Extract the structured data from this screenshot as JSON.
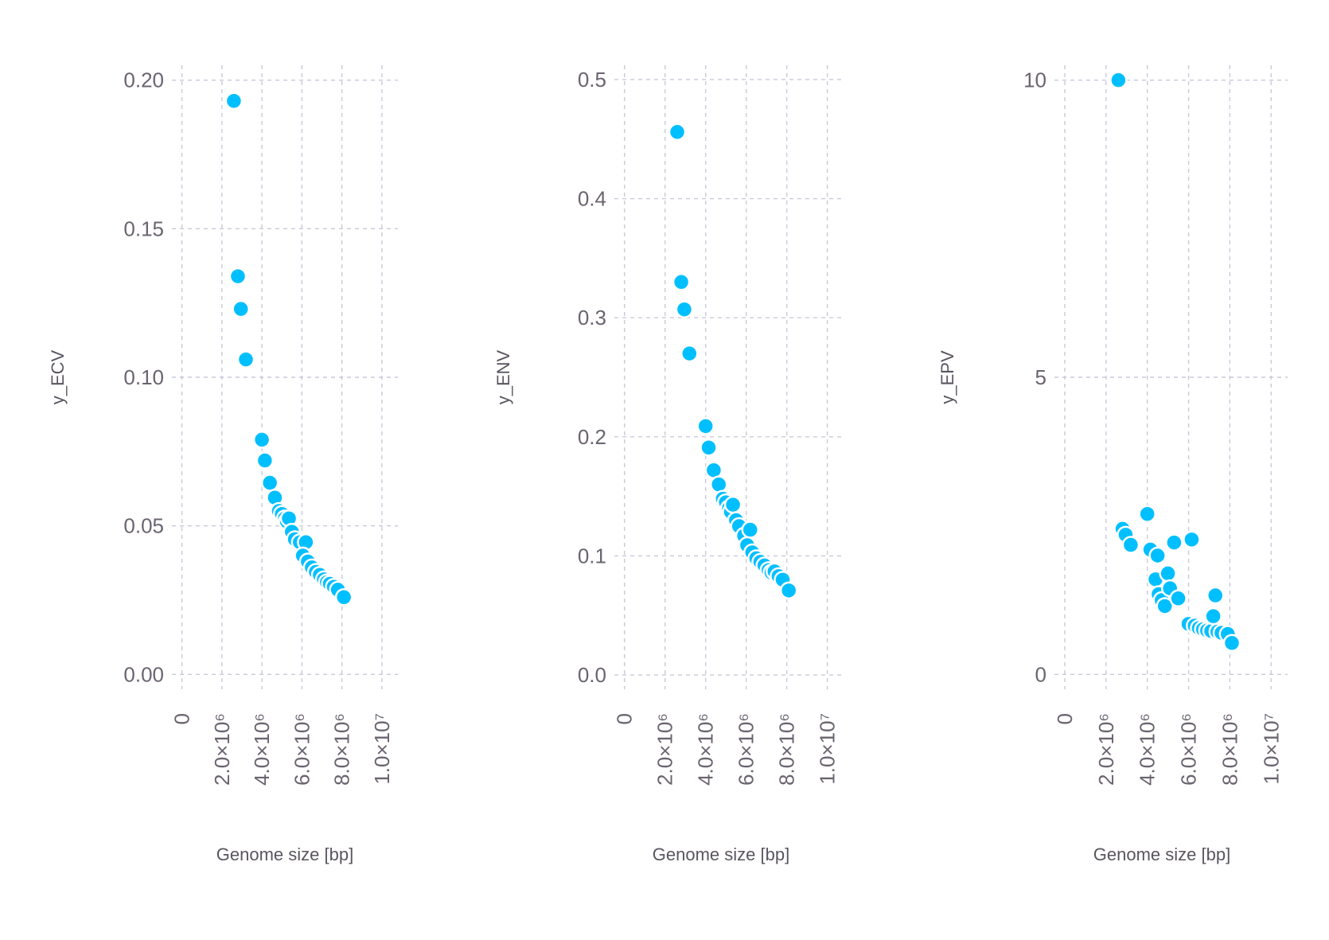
{
  "chart_data": [
    {
      "type": "scatter",
      "xlabel": "Genome size [bp]",
      "ylabel": "y_ECV",
      "xlim": [
        -500000,
        10800000
      ],
      "ylim": [
        -0.005,
        0.205
      ],
      "xticks": [
        0,
        2000000,
        4000000,
        6000000,
        8000000,
        10000000
      ],
      "xtick_labels": [
        "0",
        "2.0×10⁶",
        "4.0×10⁶",
        "6.0×10⁶",
        "8.0×10⁶",
        "1.0×10⁷"
      ],
      "yticks": [
        0,
        0.05,
        0.1,
        0.15,
        0.2
      ],
      "ytick_labels": [
        "0.00",
        "0.05",
        "0.10",
        "0.15",
        "0.20"
      ],
      "color": "#00bfff",
      "points": [
        {
          "x": 2600000,
          "y": 0.193
        },
        {
          "x": 2800000,
          "y": 0.134
        },
        {
          "x": 2950000,
          "y": 0.123
        },
        {
          "x": 3200000,
          "y": 0.106
        },
        {
          "x": 4000000,
          "y": 0.079
        },
        {
          "x": 4150000,
          "y": 0.072
        },
        {
          "x": 4400000,
          "y": 0.0645
        },
        {
          "x": 4650000,
          "y": 0.0595
        },
        {
          "x": 4850000,
          "y": 0.055
        },
        {
          "x": 5000000,
          "y": 0.054
        },
        {
          "x": 5150000,
          "y": 0.0525
        },
        {
          "x": 5250000,
          "y": 0.0515
        },
        {
          "x": 5350000,
          "y": 0.0525
        },
        {
          "x": 5500000,
          "y": 0.048
        },
        {
          "x": 5650000,
          "y": 0.0455
        },
        {
          "x": 5900000,
          "y": 0.0445
        },
        {
          "x": 6200000,
          "y": 0.0445
        },
        {
          "x": 6050000,
          "y": 0.04
        },
        {
          "x": 6300000,
          "y": 0.038
        },
        {
          "x": 6500000,
          "y": 0.036
        },
        {
          "x": 6700000,
          "y": 0.0345
        },
        {
          "x": 6900000,
          "y": 0.0335
        },
        {
          "x": 7100000,
          "y": 0.032
        },
        {
          "x": 7250000,
          "y": 0.031
        },
        {
          "x": 7400000,
          "y": 0.0305
        },
        {
          "x": 7600000,
          "y": 0.0295
        },
        {
          "x": 7800000,
          "y": 0.0285
        },
        {
          "x": 8100000,
          "y": 0.026
        }
      ]
    },
    {
      "type": "scatter",
      "xlabel": "Genome size [bp]",
      "ylabel": "y_ENV",
      "xlim": [
        -500000,
        10800000
      ],
      "ylim": [
        -0.012,
        0.512
      ],
      "xticks": [
        0,
        2000000,
        4000000,
        6000000,
        8000000,
        10000000
      ],
      "xtick_labels": [
        "0",
        "2.0×10⁶",
        "4.0×10⁶",
        "6.0×10⁶",
        "8.0×10⁶",
        "1.0×10⁷"
      ],
      "yticks": [
        0,
        0.1,
        0.2,
        0.3,
        0.4,
        0.5
      ],
      "ytick_labels": [
        "0.0",
        "0.1",
        "0.2",
        "0.3",
        "0.4",
        "0.5"
      ],
      "color": "#00bfff",
      "points": [
        {
          "x": 2600000,
          "y": 0.456
        },
        {
          "x": 2800000,
          "y": 0.33
        },
        {
          "x": 2950000,
          "y": 0.307
        },
        {
          "x": 3200000,
          "y": 0.27
        },
        {
          "x": 4000000,
          "y": 0.209
        },
        {
          "x": 4150000,
          "y": 0.191
        },
        {
          "x": 4400000,
          "y": 0.172
        },
        {
          "x": 4650000,
          "y": 0.16
        },
        {
          "x": 4850000,
          "y": 0.148
        },
        {
          "x": 5000000,
          "y": 0.145
        },
        {
          "x": 5150000,
          "y": 0.14
        },
        {
          "x": 5250000,
          "y": 0.137
        },
        {
          "x": 5350000,
          "y": 0.143
        },
        {
          "x": 5500000,
          "y": 0.13
        },
        {
          "x": 5650000,
          "y": 0.125
        },
        {
          "x": 5900000,
          "y": 0.117
        },
        {
          "x": 6200000,
          "y": 0.122
        },
        {
          "x": 6050000,
          "y": 0.109
        },
        {
          "x": 6300000,
          "y": 0.103
        },
        {
          "x": 6500000,
          "y": 0.098
        },
        {
          "x": 6700000,
          "y": 0.095
        },
        {
          "x": 6900000,
          "y": 0.092
        },
        {
          "x": 7100000,
          "y": 0.088
        },
        {
          "x": 7250000,
          "y": 0.086
        },
        {
          "x": 7400000,
          "y": 0.087
        },
        {
          "x": 7600000,
          "y": 0.083
        },
        {
          "x": 7800000,
          "y": 0.08
        },
        {
          "x": 8100000,
          "y": 0.071
        }
      ]
    },
    {
      "type": "scatter",
      "xlabel": "Genome size [bp]",
      "ylabel": "y_EPV",
      "xlim": [
        -500000,
        10800000
      ],
      "ylim": [
        -0.25,
        10.25
      ],
      "xticks": [
        0,
        2000000,
        4000000,
        6000000,
        8000000,
        10000000
      ],
      "xtick_labels": [
        "0",
        "2.0×10⁶",
        "4.0×10⁶",
        "6.0×10⁶",
        "8.0×10⁶",
        "1.0×10⁷"
      ],
      "yticks": [
        0,
        5,
        10
      ],
      "ytick_labels": [
        "0",
        "5",
        "10"
      ],
      "color": "#00bfff",
      "points": [
        {
          "x": 2600000,
          "y": 10.0
        },
        {
          "x": 2800000,
          "y": 2.45
        },
        {
          "x": 2950000,
          "y": 2.35
        },
        {
          "x": 3200000,
          "y": 2.18
        },
        {
          "x": 4000000,
          "y": 2.7
        },
        {
          "x": 4150000,
          "y": 2.1
        },
        {
          "x": 4400000,
          "y": 1.6
        },
        {
          "x": 4500000,
          "y": 2.0
        },
        {
          "x": 4550000,
          "y": 1.35
        },
        {
          "x": 4700000,
          "y": 1.25
        },
        {
          "x": 4850000,
          "y": 1.15
        },
        {
          "x": 5000000,
          "y": 1.7
        },
        {
          "x": 5100000,
          "y": 1.45
        },
        {
          "x": 5300000,
          "y": 2.22
        },
        {
          "x": 5500000,
          "y": 1.28
        },
        {
          "x": 6150000,
          "y": 2.27
        },
        {
          "x": 6000000,
          "y": 0.85
        },
        {
          "x": 6300000,
          "y": 0.82
        },
        {
          "x": 6500000,
          "y": 0.78
        },
        {
          "x": 6700000,
          "y": 0.76
        },
        {
          "x": 6900000,
          "y": 0.74
        },
        {
          "x": 7100000,
          "y": 0.73
        },
        {
          "x": 7200000,
          "y": 0.98
        },
        {
          "x": 7300000,
          "y": 1.33
        },
        {
          "x": 7400000,
          "y": 0.72
        },
        {
          "x": 7600000,
          "y": 0.7
        },
        {
          "x": 7900000,
          "y": 0.68
        },
        {
          "x": 8100000,
          "y": 0.53
        }
      ]
    }
  ]
}
